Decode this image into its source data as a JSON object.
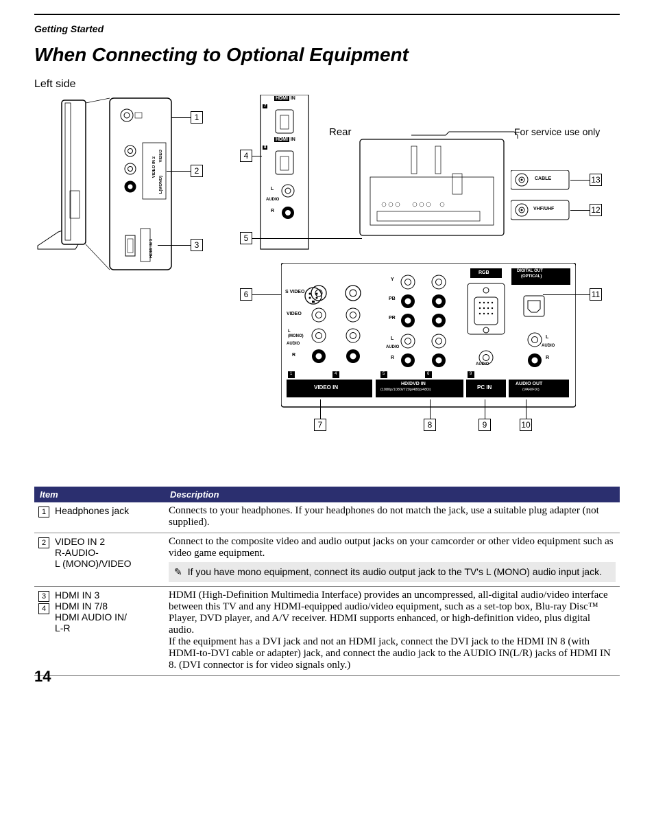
{
  "page": {
    "section": "Getting Started",
    "title": "When Connecting to Optional Equipment",
    "leftside_label": "Left side",
    "rear_label": "Rear",
    "service_label": "For service use only",
    "page_number": "14"
  },
  "diagram": {
    "callouts_left": [
      "1",
      "2",
      "3"
    ],
    "callouts_mid": [
      "4",
      "5",
      "6"
    ],
    "callouts_bottom": [
      "7",
      "8",
      "9",
      "10"
    ],
    "callouts_right": [
      "13",
      "12",
      "11"
    ],
    "side_labels": {
      "hdmi_in_top": "HDMI IN",
      "hdmi_in_7": "7",
      "hdmi_in_8": "8",
      "audio_l": "L",
      "audio": "AUDIO",
      "audio_r": "R",
      "cable": "CABLE",
      "vhf": "VHF/UHF"
    },
    "rear_panel": {
      "rgb": "RGB",
      "digital_out": "DIGITAL OUT",
      "optical": "(OPTICAL)",
      "y": "Y",
      "pb": "PB",
      "pr": "PR",
      "svideo": "S VIDEO",
      "video": "VIDEO",
      "l_mono": "L\n(MONO)",
      "audio": "AUDIO",
      "r": "R",
      "l": "L",
      "video_in": "VIDEO IN",
      "hd_dvd_in": "HD/DVD IN",
      "hd_res": "(1080p/1080i/720p/480p/480i)",
      "pc_in": "PC IN",
      "audio_out": "AUDIO OUT",
      "varfix": "(VAR/FIX)",
      "pc_audio": "AUDIO",
      "nums": [
        "1",
        "4",
        "5",
        "6",
        "9"
      ]
    }
  },
  "table": {
    "header_item": "Item",
    "header_desc": "Description",
    "rows": [
      {
        "nums": [
          "1"
        ],
        "name": "Headphones jack",
        "desc": "Connects to your headphones. If your headphones do not match the jack, use a suitable plug adapter (not supplied).",
        "note": null
      },
      {
        "nums": [
          "2"
        ],
        "name": "VIDEO IN 2\nR-AUDIO-\nL (MONO)/VIDEO",
        "desc": "Connect to the composite video and audio output jacks on your camcorder or other video equipment such as video game equipment.",
        "note": "If you have mono equipment, connect its audio output jack to the TV's L (MONO) audio input jack."
      },
      {
        "nums": [
          "3",
          "4"
        ],
        "name": "HDMI IN 3\nHDMI IN 7/8\nHDMI AUDIO IN/\nL-R",
        "desc": "HDMI (High-Definition Multimedia Interface) provides an uncompressed, all-digital audio/video interface between this TV and any HDMI-equipped audio/video equipment, such as a set-top box, Blu-ray Disc™ Player, DVD player, and A/V receiver. HDMI supports enhanced, or high-definition video, plus digital audio.\nIf the equipment has a DVI jack and not an HDMI jack, connect the DVI jack to the HDMI IN 8 (with HDMI-to-DVI cable or adapter) jack, and connect the audio jack to the AUDIO IN(L/R) jacks of HDMI IN 8. (DVI connector is for video signals only.)",
        "note": null
      }
    ]
  },
  "colors": {
    "header_bg": "#2b2f6f",
    "note_bg": "#e9e9e9",
    "rule": "#000000"
  }
}
